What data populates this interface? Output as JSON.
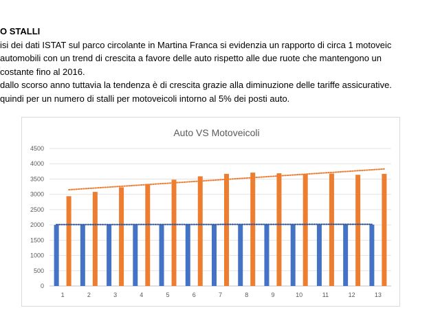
{
  "slide": {
    "lines": [
      "O STALLI",
      "isi dei dati ISTAT sul parco circolante in Martina Franca si evidenzia un rapporto di circa 1 motoveic",
      "automobili con un trend di crescita a favore delle auto rispetto alle due ruote che mantengono un",
      "costante fino al 2016.",
      " dallo scorso anno tuttavia la tendenza è di crescita grazie alla diminuzione delle tariffe assicurative.",
      "quindi per un numero di stalli per motoveicoli intorno al 5% dei posti auto."
    ]
  },
  "chart_data": {
    "type": "bar",
    "title": "Auto VS Motoveicoli",
    "xlabel": "",
    "ylabel": "",
    "categories": [
      "1",
      "2",
      "3",
      "4",
      "5",
      "6",
      "7",
      "8",
      "9",
      "10",
      "11",
      "12",
      "13"
    ],
    "ylim": [
      0,
      4500
    ],
    "yticks": [
      0,
      500,
      1000,
      1500,
      2000,
      2500,
      3000,
      3500,
      4000,
      4500
    ],
    "grid": true,
    "legend": "none",
    "series": [
      {
        "values": [
          2000,
          2000,
          2000,
          2000,
          2000,
          2010,
          2010,
          2010,
          2010,
          2010,
          2010,
          2010,
          2010
        ],
        "color": "#4472c4"
      },
      {
        "values": [
          2940,
          3080,
          3230,
          3340,
          3480,
          3590,
          3670,
          3710,
          3690,
          3670,
          3680,
          3640,
          3670
        ],
        "color": "#ed7d31"
      }
    ],
    "trendlines": [
      {
        "series_index": 0,
        "start": 2010,
        "end": 2020,
        "color": "#2f5597",
        "style": "dotted"
      },
      {
        "series_index": 1,
        "start": 3150,
        "end": 3830,
        "color": "#ed7d31",
        "style": "dotted"
      }
    ]
  }
}
